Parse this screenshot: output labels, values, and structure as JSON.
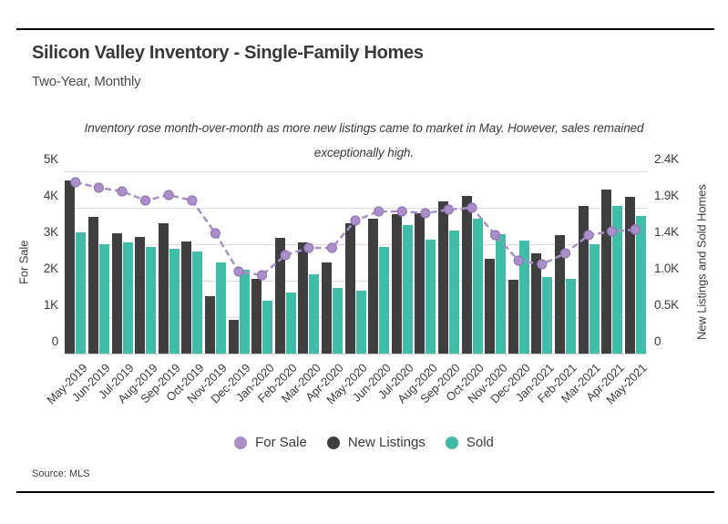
{
  "header": {
    "title": "Silicon Valley Inventory - Single-Family Homes",
    "subtitle": "Two-Year, Monthly"
  },
  "annotation": "Inventory rose month-over-month as more new listings came to market in May. However, sales remained exceptionally high.",
  "source": "Source: MLS",
  "colors": {
    "for_sale": "#ab8fcb",
    "for_sale_line": "#a78fc9",
    "for_sale_dot_border": "#9377b5",
    "new_listings": "#3f3f3f",
    "sold": "#40bda6",
    "gridline": "#dedede"
  },
  "legend": [
    {
      "label": "For Sale",
      "color": "#ab8fcb"
    },
    {
      "label": "New Listings",
      "color": "#3f3f3f"
    },
    {
      "label": "Sold",
      "color": "#40bda6"
    }
  ],
  "chart_data": {
    "type": "bar",
    "subtype": "grouped bars with overlaid dashed line",
    "categories": [
      "May-2019",
      "Jun-2019",
      "Jul-2019",
      "Aug-2019",
      "Sep-2019",
      "Oct-2019",
      "Nov-2019",
      "Dec-2019",
      "Jan-2020",
      "Feb-2020",
      "Mar-2020",
      "Apr-2020",
      "May-2020",
      "Jun-2020",
      "Jul-2020",
      "Aug-2020",
      "Sep-2020",
      "Oct-2020",
      "Nov-2020",
      "Dec-2020",
      "Jan-2021",
      "Feb-2021",
      "Mar-2021",
      "Apr-2021",
      "May-2021"
    ],
    "series": [
      {
        "name": "For Sale",
        "type": "line",
        "axis": "left",
        "units": "thousands",
        "color": "#ab8fcb",
        "values": [
          4.7,
          4.55,
          4.45,
          4.2,
          4.35,
          4.2,
          3.3,
          2.25,
          2.15,
          2.7,
          2.9,
          2.9,
          3.65,
          3.9,
          3.9,
          3.85,
          3.95,
          4.0,
          3.25,
          2.55,
          2.45,
          2.75,
          3.25,
          3.35,
          3.4
        ]
      },
      {
        "name": "New Listings",
        "type": "bar",
        "axis": "right",
        "units": "thousands",
        "color": "#3f3f3f",
        "values": [
          2.28,
          1.8,
          1.58,
          1.54,
          1.72,
          1.48,
          0.76,
          0.44,
          0.98,
          1.52,
          1.46,
          1.2,
          1.72,
          1.78,
          1.84,
          1.85,
          2.0,
          2.08,
          1.25,
          0.97,
          1.32,
          1.56,
          1.95,
          2.16,
          2.07
        ]
      },
      {
        "name": "Sold",
        "type": "bar",
        "axis": "right",
        "units": "thousands",
        "color": "#40bda6",
        "values": [
          1.6,
          1.44,
          1.46,
          1.41,
          1.38,
          1.35,
          1.2,
          1.1,
          0.7,
          0.81,
          1.04,
          0.86,
          0.83,
          1.4,
          1.69,
          1.5,
          1.62,
          1.78,
          1.57,
          1.49,
          1.01,
          0.98,
          1.44,
          1.94,
          1.81
        ]
      }
    ],
    "left_axis": {
      "label": "For Sale",
      "range": [
        0,
        5
      ],
      "ticks": [
        "0",
        "1K",
        "2K",
        "3K",
        "4K",
        "5K"
      ]
    },
    "right_axis": {
      "label": "New Listings and Sold Homes",
      "range": [
        0,
        2.4
      ],
      "ticks": [
        "0",
        "0.5K",
        "1.0K",
        "1.4K",
        "1.9K",
        "2.4K"
      ]
    },
    "grid": "horizontal",
    "legend_position": "bottom"
  }
}
